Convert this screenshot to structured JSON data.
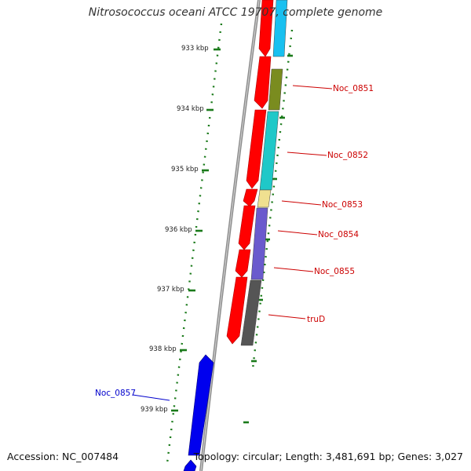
{
  "title": "Nitrosococcus oceani ATCC 19707, complete genome",
  "footer": {
    "accession": "Accession: NC_007484",
    "summary": "Topology: circular; Length: 3,481,691 bp; Genes: 3,027"
  },
  "ruler_ticks": [
    {
      "label": "933 kbp"
    },
    {
      "label": "934 kbp"
    },
    {
      "label": "935 kbp"
    },
    {
      "label": "936 kbp"
    },
    {
      "label": "937 kbp"
    },
    {
      "label": "938 kbp"
    },
    {
      "label": "939 kbp"
    }
  ],
  "genes": [
    {
      "label": "Noc_0851",
      "label_color": "#cc0000",
      "color": "#7a8c1f"
    },
    {
      "label": "Noc_0852",
      "label_color": "#cc0000",
      "color": "#1fc8c8"
    },
    {
      "label": "Noc_0853",
      "label_color": "#cc0000",
      "color": "#f0e090"
    },
    {
      "label": "Noc_0854",
      "label_color": "#cc0000",
      "color": "#6a5acd"
    },
    {
      "label": "Noc_0855",
      "label_color": "#cc0000",
      "color": "#6a5acd"
    },
    {
      "label": "truD",
      "label_color": "#cc0000",
      "color": "#555555"
    },
    {
      "label": "Noc_0857",
      "label_color": "#0000cc",
      "color": "#0000ee"
    }
  ],
  "colors": {
    "forward_cds": "#ff0000",
    "reverse_cds": "#0000ee",
    "backbone": "#888888",
    "ruler_dots": "#1a7a1a"
  }
}
